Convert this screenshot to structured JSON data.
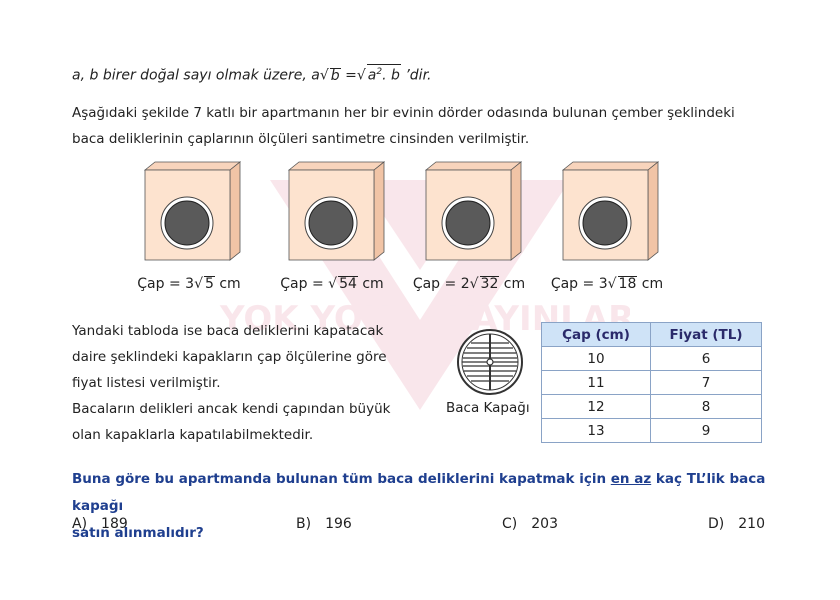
{
  "given": {
    "prefix": "a, b birer doğal sayı olmak üzere, a",
    "rad1": "b",
    "eq": " =",
    "rad2a": "a",
    "rad2sup": "2",
    "rad2b": ". b",
    "suffix": " ’dir."
  },
  "intro": {
    "line1": "Aşağıdaki şekilde 7 katlı bir apartmanın her bir evinin dörder odasında bulunan çember şeklindeki",
    "line2": "baca deliklerinin çaplarının ölçüleri santimetre cinsinden verilmiştir."
  },
  "holes": [
    {
      "pre": "Çap = 3",
      "rad": "5",
      "unit": " cm"
    },
    {
      "pre": "Çap = ",
      "rad": "54",
      "unit": " cm"
    },
    {
      "pre": "Çap = 2",
      "rad": "32",
      "unit": " cm"
    },
    {
      "pre": "Çap = 3",
      "rad": "18",
      "unit": " cm"
    }
  ],
  "para2": {
    "line1": "Yandaki tabloda ise baca deliklerini kapatacak",
    "line2": "daire şeklindeki kapakların çap ölçülerine göre",
    "line3": "fiyat listesi verilmiştir.",
    "line4": "Bacaların delikleri ancak kendi çapından büyük",
    "line5": "olan kapaklarla kapatılabilmektedir."
  },
  "lid_label": "Baca Kapağı",
  "table": {
    "headers": [
      "Çap (cm)",
      "Fiyat (TL)"
    ],
    "rows": [
      [
        "10",
        "6"
      ],
      [
        "11",
        "7"
      ],
      [
        "12",
        "8"
      ],
      [
        "13",
        "9"
      ]
    ]
  },
  "question": {
    "part1": "Buna göre bu apartmanda bulunan tüm baca deliklerini kapatmak için ",
    "underlined": "en az",
    "part2": " kaç TL’lik baca kapağı",
    "line2": "satın alınmalıdır?"
  },
  "choices": [
    {
      "letter": "A)",
      "value": "189"
    },
    {
      "letter": "B)",
      "value": "196"
    },
    {
      "letter": "C)",
      "value": "203"
    },
    {
      "letter": "D)",
      "value": "210"
    }
  ],
  "watermark": {
    "left": "YOK YOK",
    "right": "YAYINLARI"
  },
  "colors": {
    "box_front": "#fde3cf",
    "box_side": "#f3cdb4",
    "hole": "#5a5a5a",
    "header_bg": "#cfe3f7",
    "question": "#1f3f8f",
    "watermark": "#e8a0b0"
  }
}
